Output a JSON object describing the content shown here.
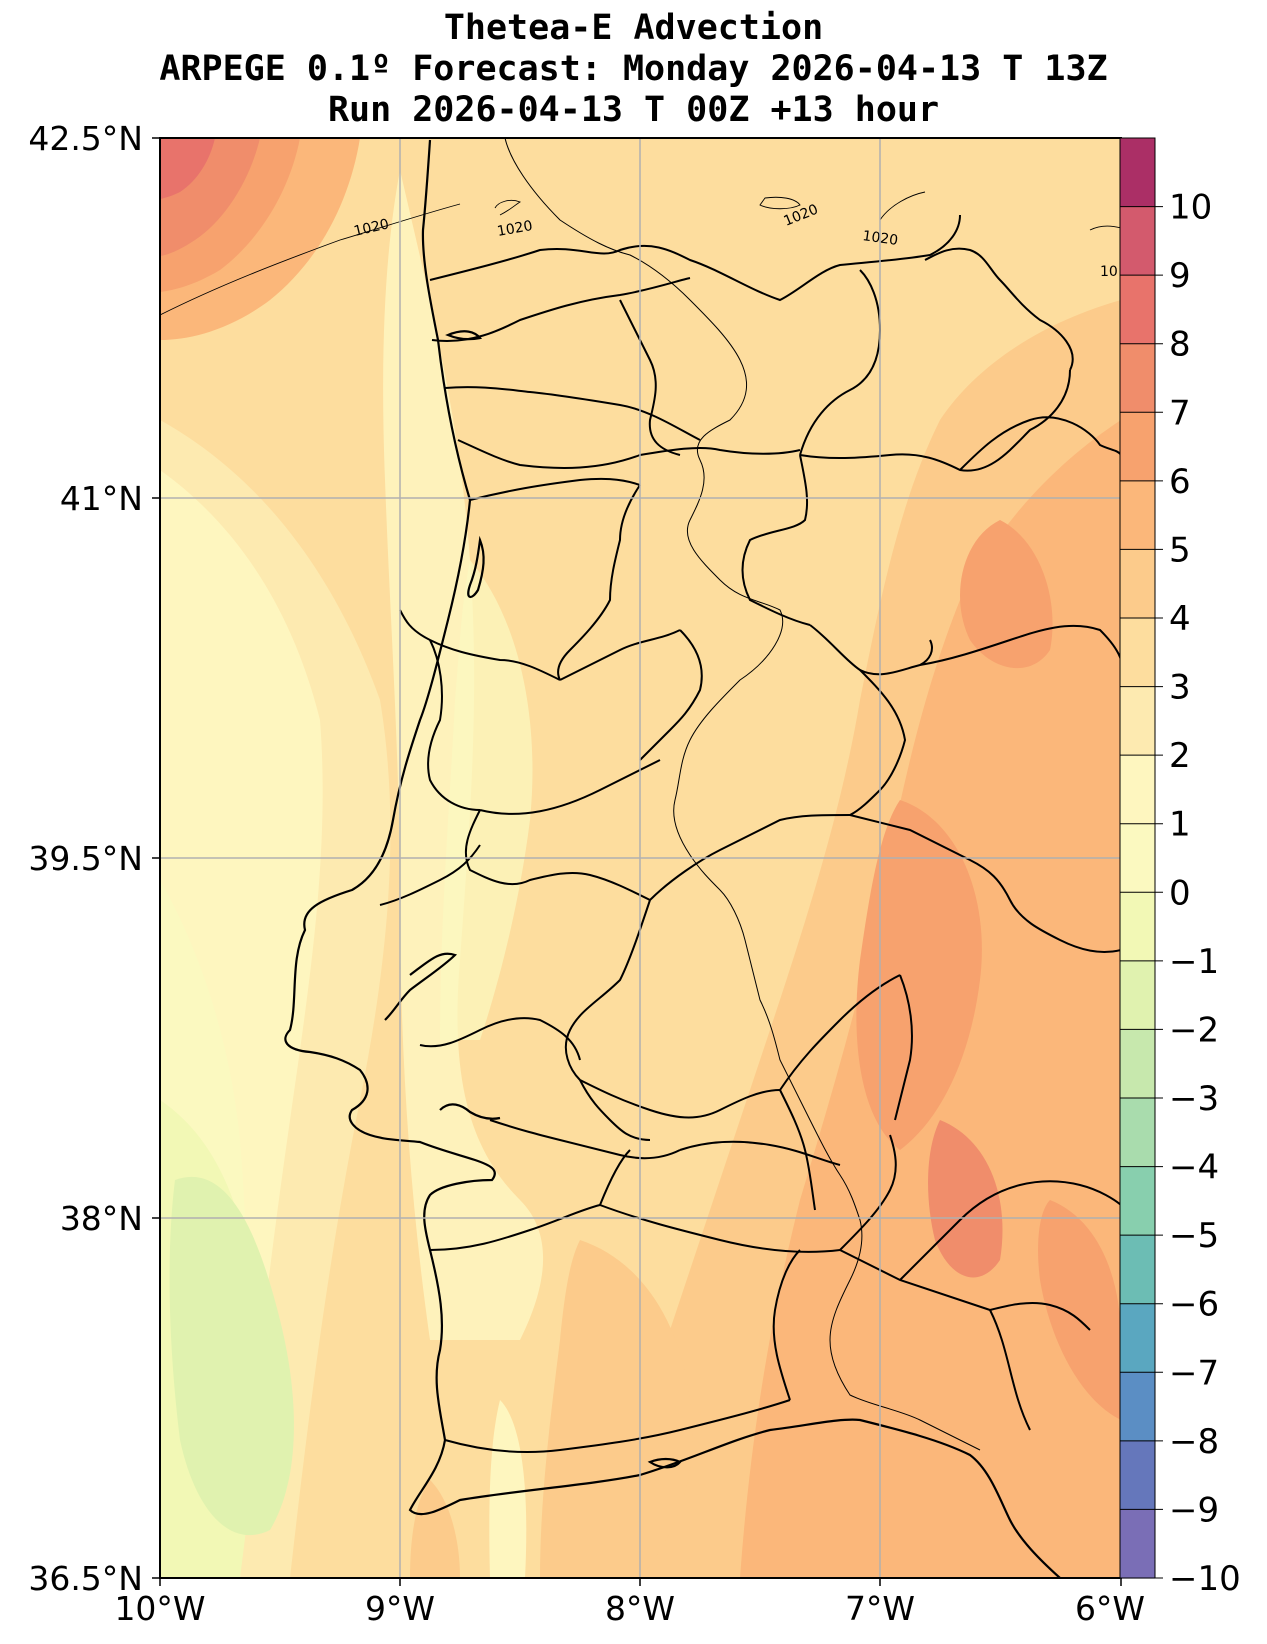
{
  "titles": {
    "line1": "Thetea-E Advection",
    "line2": "ARPEGE 0.1º Forecast: Monday 2026-04-13 T 13Z",
    "line3": "Run 2026-04-13 T 00Z +13 hour"
  },
  "map": {
    "region": "Portugal",
    "lon_range": [
      -10,
      -6
    ],
    "lat_range": [
      36.5,
      42.5
    ],
    "grid": true,
    "lon_ticks": [
      "10°W",
      "9°W",
      "8°W",
      "7°W",
      "6°W"
    ],
    "lat_ticks": [
      "42.5°N",
      "41°N",
      "39.5°N",
      "38°N",
      "36.5°N"
    ],
    "isobar_labels": [
      "1020",
      "1020",
      "1020",
      "1020",
      "10"
    ],
    "features": [
      "coastline",
      "district borders",
      "country border",
      "pressure isolines",
      "filled advection contours"
    ]
  },
  "colorbar": {
    "ticks": [
      "10",
      "9",
      "8",
      "7",
      "6",
      "5",
      "4",
      "3",
      "2",
      "1",
      "0",
      "−1",
      "−2",
      "−3",
      "−4",
      "−5",
      "−6",
      "−7",
      "−8",
      "−9",
      "−10"
    ],
    "colors": [
      "#ab2f66",
      "#d35a6d",
      "#e8736b",
      "#f08d6b",
      "#f7a26e",
      "#fbb77a",
      "#fccb8b",
      "#fddd9e",
      "#fdeab0",
      "#fef6bf",
      "#fbf9c0",
      "#f2f8b5",
      "#e0f2af",
      "#c7e8ad",
      "#a9dcad",
      "#88cfae",
      "#6cbdb4",
      "#5aa7c0",
      "#5b8ec4",
      "#6577bb",
      "#7a6eb6"
    ]
  }
}
